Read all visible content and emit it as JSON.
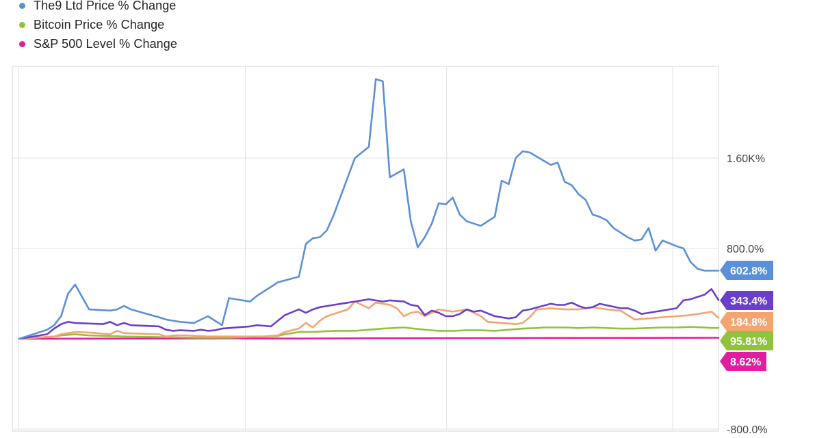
{
  "chart_data": {
    "type": "line",
    "title": "",
    "xlabel": "",
    "ylabel": "",
    "ylim": [
      -800,
      2000
    ],
    "y_ticks": [
      {
        "value": 1600,
        "label": "1.60K%"
      },
      {
        "value": 800,
        "label": "800.0%"
      },
      {
        "value": -800,
        "label": "-800.0%"
      }
    ],
    "x_gridlines_at": [
      0.009,
      0.33,
      0.615,
      0.935
    ],
    "x_domain": [
      0,
      1
    ],
    "legend_position": "top-left",
    "grid": true,
    "series": [
      {
        "name": "The9 Ltd Price % Change",
        "color": "#5b8fd9",
        "end_label": "602.8%",
        "in_legend": true,
        "x": [
          0.0,
          0.04,
          0.05,
          0.06,
          0.07,
          0.08,
          0.1,
          0.13,
          0.14,
          0.15,
          0.16,
          0.2,
          0.21,
          0.22,
          0.23,
          0.25,
          0.27,
          0.28,
          0.29,
          0.3,
          0.33,
          0.34,
          0.35,
          0.36,
          0.37,
          0.4,
          0.41,
          0.42,
          0.43,
          0.44,
          0.45,
          0.48,
          0.5,
          0.51,
          0.52,
          0.53,
          0.55,
          0.56,
          0.57,
          0.58,
          0.59,
          0.6,
          0.61,
          0.62,
          0.63,
          0.64,
          0.65,
          0.66,
          0.68,
          0.69,
          0.7,
          0.71,
          0.72,
          0.73,
          0.76,
          0.77,
          0.78,
          0.79,
          0.8,
          0.81,
          0.82,
          0.83,
          0.84,
          0.85,
          0.87,
          0.88,
          0.89,
          0.9,
          0.91,
          0.92,
          0.94,
          0.95,
          0.96,
          0.97,
          0.98,
          0.99,
          1.0
        ],
        "values": [
          0,
          80,
          120,
          200,
          400,
          480,
          260,
          250,
          260,
          290,
          260,
          190,
          170,
          160,
          150,
          140,
          200,
          160,
          120,
          360,
          330,
          380,
          420,
          460,
          500,
          550,
          840,
          890,
          900,
          960,
          1100,
          1600,
          1700,
          2300,
          2280,
          1430,
          1500,
          1040,
          810,
          900,
          1020,
          1200,
          1190,
          1250,
          1100,
          1040,
          1020,
          1000,
          1080,
          1400,
          1370,
          1600,
          1660,
          1650,
          1540,
          1560,
          1390,
          1360,
          1280,
          1230,
          1100,
          1080,
          1050,
          980,
          900,
          870,
          880,
          980,
          780,
          870,
          820,
          800,
          680,
          620,
          603,
          603,
          603
        ],
        "in_legend_order": 0
      },
      {
        "name": "",
        "color": "#6a3fc9",
        "end_label": "343.4%",
        "in_legend": false,
        "x": [
          0.0,
          0.04,
          0.05,
          0.06,
          0.07,
          0.08,
          0.12,
          0.13,
          0.14,
          0.15,
          0.16,
          0.2,
          0.21,
          0.22,
          0.23,
          0.25,
          0.26,
          0.27,
          0.28,
          0.29,
          0.3,
          0.33,
          0.34,
          0.35,
          0.36,
          0.37,
          0.38,
          0.4,
          0.41,
          0.42,
          0.43,
          0.44,
          0.48,
          0.5,
          0.52,
          0.53,
          0.55,
          0.56,
          0.57,
          0.58,
          0.59,
          0.6,
          0.61,
          0.62,
          0.63,
          0.64,
          0.65,
          0.66,
          0.68,
          0.7,
          0.71,
          0.72,
          0.73,
          0.76,
          0.77,
          0.78,
          0.79,
          0.8,
          0.81,
          0.82,
          0.83,
          0.86,
          0.87,
          0.88,
          0.89,
          0.9,
          0.91,
          0.92,
          0.94,
          0.95,
          0.96,
          0.97,
          0.98,
          0.99,
          1.0
        ],
        "values": [
          0,
          40,
          90,
          130,
          150,
          140,
          130,
          150,
          120,
          140,
          120,
          110,
          80,
          70,
          75,
          70,
          80,
          70,
          75,
          90,
          95,
          110,
          120,
          115,
          110,
          160,
          210,
          260,
          230,
          260,
          280,
          290,
          330,
          350,
          330,
          340,
          330,
          300,
          290,
          210,
          250,
          230,
          200,
          200,
          220,
          260,
          240,
          250,
          200,
          180,
          190,
          250,
          260,
          310,
          300,
          300,
          320,
          290,
          270,
          280,
          310,
          270,
          270,
          250,
          220,
          230,
          240,
          250,
          270,
          340,
          350,
          370,
          390,
          440,
          343
        ]
      },
      {
        "name": "",
        "color": "#f4a46f",
        "end_label": "184.8%",
        "in_legend": false,
        "x": [
          0.0,
          0.05,
          0.06,
          0.07,
          0.08,
          0.1,
          0.13,
          0.14,
          0.15,
          0.2,
          0.21,
          0.22,
          0.24,
          0.27,
          0.3,
          0.33,
          0.35,
          0.37,
          0.38,
          0.4,
          0.41,
          0.42,
          0.43,
          0.44,
          0.47,
          0.48,
          0.5,
          0.51,
          0.52,
          0.53,
          0.54,
          0.55,
          0.56,
          0.57,
          0.58,
          0.59,
          0.6,
          0.61,
          0.62,
          0.64,
          0.66,
          0.67,
          0.69,
          0.71,
          0.72,
          0.73,
          0.74,
          0.76,
          0.78,
          0.8,
          0.82,
          0.84,
          0.86,
          0.88,
          0.9,
          0.92,
          0.94,
          0.96,
          0.98,
          0.99,
          1.0
        ],
        "values": [
          0,
          20,
          40,
          50,
          60,
          55,
          40,
          70,
          50,
          40,
          20,
          30,
          30,
          20,
          20,
          20,
          20,
          30,
          60,
          90,
          140,
          100,
          160,
          200,
          260,
          330,
          270,
          320,
          310,
          300,
          270,
          200,
          230,
          240,
          200,
          230,
          260,
          250,
          240,
          260,
          200,
          150,
          140,
          130,
          140,
          190,
          260,
          270,
          260,
          260,
          280,
          260,
          250,
          170,
          180,
          190,
          200,
          210,
          230,
          240,
          185
        ]
      },
      {
        "name": "Bitcoin Price % Change",
        "color": "#8fc33e",
        "end_label": "95.81%",
        "in_legend": true,
        "x": [
          0.0,
          0.05,
          0.06,
          0.08,
          0.1,
          0.15,
          0.2,
          0.25,
          0.3,
          0.35,
          0.37,
          0.38,
          0.39,
          0.4,
          0.42,
          0.45,
          0.48,
          0.5,
          0.52,
          0.55,
          0.58,
          0.6,
          0.62,
          0.64,
          0.66,
          0.68,
          0.7,
          0.72,
          0.74,
          0.75,
          0.78,
          0.8,
          0.82,
          0.84,
          0.86,
          0.88,
          0.9,
          0.92,
          0.94,
          0.96,
          0.98,
          0.99,
          1.0
        ],
        "values": [
          0,
          20,
          30,
          40,
          30,
          20,
          15,
          10,
          10,
          20,
          25,
          40,
          50,
          60,
          60,
          70,
          70,
          80,
          90,
          100,
          80,
          70,
          70,
          75,
          75,
          70,
          80,
          90,
          95,
          100,
          100,
          95,
          100,
          95,
          90,
          90,
          95,
          100,
          100,
          105,
          100,
          96,
          96
        ]
      },
      {
        "name": "S&P 500 Level % Change",
        "color": "#e01e9f",
        "end_label": "8.62%",
        "in_legend": true,
        "x": [
          0.0,
          0.1,
          0.2,
          0.3,
          0.4,
          0.5,
          0.6,
          0.7,
          0.8,
          0.9,
          1.0
        ],
        "values": [
          0,
          1,
          2,
          3,
          2,
          4,
          5,
          6,
          7,
          8,
          9
        ]
      }
    ]
  }
}
